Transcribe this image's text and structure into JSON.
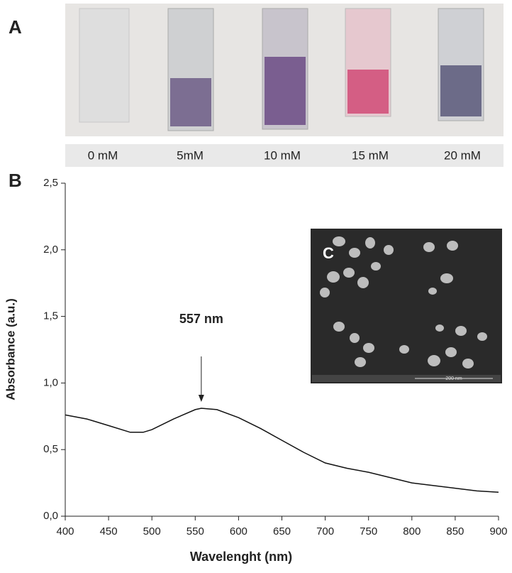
{
  "panel_labels": [
    "A",
    "B",
    "C"
  ],
  "samples": [
    "0 mM",
    "5mM",
    "10 mM",
    "15 mM",
    "20 mM"
  ],
  "inset_scale": "200 nm",
  "chart_data": {
    "type": "line",
    "xlabel": "Wavelenght (nm)",
    "ylabel": "Absorbance (a.u.)",
    "x": [
      400,
      425,
      450,
      475,
      490,
      500,
      525,
      550,
      557,
      575,
      600,
      625,
      650,
      675,
      700,
      725,
      750,
      775,
      800,
      825,
      850,
      875,
      900
    ],
    "values": [
      0.76,
      0.73,
      0.68,
      0.63,
      0.63,
      0.65,
      0.73,
      0.8,
      0.81,
      0.8,
      0.74,
      0.66,
      0.57,
      0.48,
      0.4,
      0.36,
      0.33,
      0.29,
      0.25,
      0.23,
      0.21,
      0.19,
      0.18
    ],
    "color": "#111111",
    "xlim": [
      400,
      900
    ],
    "ylim": [
      0,
      2.5
    ],
    "xticks": [
      400,
      450,
      500,
      550,
      600,
      650,
      700,
      750,
      800,
      850,
      900
    ],
    "yticks": [
      {
        "value": 0,
        "label": "0,0"
      },
      {
        "value": 0.5,
        "label": "0,5"
      },
      {
        "value": 1,
        "label": "1,0"
      },
      {
        "value": 1.5,
        "label": "1,5"
      },
      {
        "value": 2,
        "label": "2,0"
      },
      {
        "value": 2.5,
        "label": "2,5"
      }
    ],
    "annotation": {
      "text": "557 nm",
      "x": 557
    }
  }
}
